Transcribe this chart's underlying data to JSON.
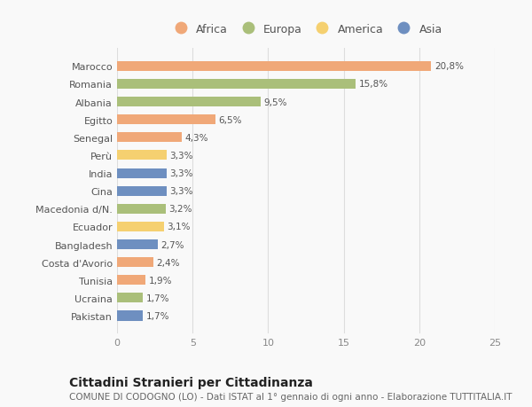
{
  "countries": [
    "Marocco",
    "Romania",
    "Albania",
    "Egitto",
    "Senegal",
    "Perù",
    "India",
    "Cina",
    "Macedonia d/N.",
    "Ecuador",
    "Bangladesh",
    "Costa d'Avorio",
    "Tunisia",
    "Ucraina",
    "Pakistan"
  ],
  "values": [
    20.8,
    15.8,
    9.5,
    6.5,
    4.3,
    3.3,
    3.3,
    3.3,
    3.2,
    3.1,
    2.7,
    2.4,
    1.9,
    1.7,
    1.7
  ],
  "labels": [
    "20,8%",
    "15,8%",
    "9,5%",
    "6,5%",
    "4,3%",
    "3,3%",
    "3,3%",
    "3,3%",
    "3,2%",
    "3,1%",
    "2,7%",
    "2,4%",
    "1,9%",
    "1,7%",
    "1,7%"
  ],
  "continents": [
    "Africa",
    "Europa",
    "Europa",
    "Africa",
    "Africa",
    "America",
    "Asia",
    "Asia",
    "Europa",
    "America",
    "Asia",
    "Africa",
    "Africa",
    "Europa",
    "Asia"
  ],
  "continent_colors": {
    "Africa": "#F0A878",
    "Europa": "#AABF7A",
    "America": "#F5D070",
    "Asia": "#6E8FC0"
  },
  "legend_order": [
    "Africa",
    "Europa",
    "America",
    "Asia"
  ],
  "title": "Cittadini Stranieri per Cittadinanza",
  "subtitle": "COMUNE DI CODOGNO (LO) - Dati ISTAT al 1° gennaio di ogni anno - Elaborazione TUTTITALIA.IT",
  "xlim": [
    0,
    25
  ],
  "xticks": [
    0,
    5,
    10,
    15,
    20,
    25
  ],
  "background_color": "#f9f9f9",
  "bar_height": 0.55,
  "title_fontsize": 10,
  "subtitle_fontsize": 7.5,
  "label_fontsize": 7.5,
  "tick_fontsize": 8,
  "legend_fontsize": 9
}
